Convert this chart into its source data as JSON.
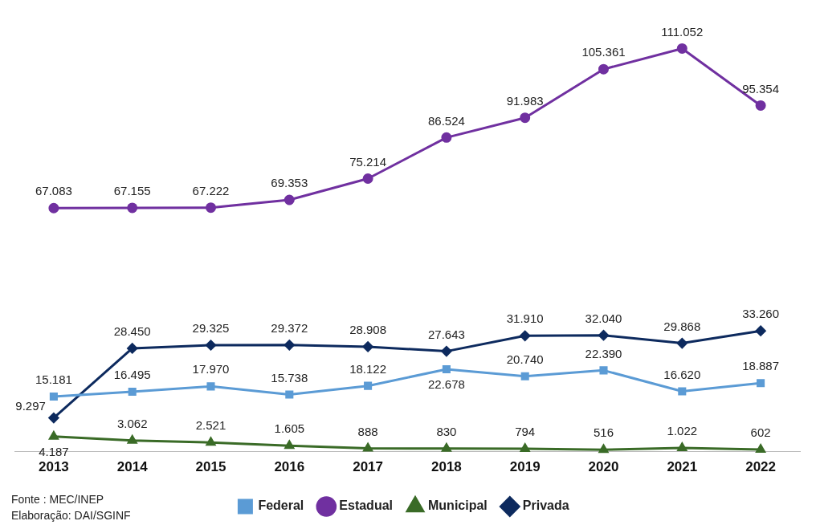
{
  "chart_data": {
    "type": "line",
    "categories": [
      "2013",
      "2014",
      "2015",
      "2016",
      "2017",
      "2018",
      "2019",
      "2020",
      "2021",
      "2022"
    ],
    "series": [
      {
        "name": "Federal",
        "color": "#5b9bd5",
        "marker": "square",
        "values": [
          15181,
          16495,
          17970,
          15738,
          18122,
          22678,
          20740,
          22390,
          16620,
          18887
        ],
        "value_labels": [
          "15.181",
          "16.495",
          "17.970",
          "15.738",
          "18.122",
          "22.678",
          "20.740",
          "22.390",
          "16.620",
          "18.887"
        ]
      },
      {
        "name": "Estadual",
        "color": "#7030a0",
        "marker": "circle",
        "values": [
          67083,
          67155,
          67222,
          69353,
          75214,
          86524,
          91983,
          105361,
          111052,
          95354
        ],
        "value_labels": [
          "67.083",
          "67.155",
          "67.222",
          "69.353",
          "75.214",
          "86.524",
          "91.983",
          "105.361",
          "111.052",
          "95.354"
        ]
      },
      {
        "name": "Municipal",
        "color": "#3a6b27",
        "marker": "triangle",
        "values": [
          4187,
          3062,
          2521,
          1605,
          888,
          830,
          794,
          516,
          1022,
          602
        ],
        "value_labels": [
          "4.187",
          "3.062",
          "2.521",
          "1.605",
          "888",
          "830",
          "794",
          "516",
          "1.022",
          "602"
        ]
      },
      {
        "name": "Privada",
        "color": "#0d2a5e",
        "marker": "diamond",
        "values": [
          9297,
          28450,
          29325,
          29372,
          28908,
          27643,
          31910,
          32040,
          29868,
          33260
        ],
        "value_labels": [
          "9.297",
          "28.450",
          "29.325",
          "29.372",
          "28.908",
          "27.643",
          "31.910",
          "32.040",
          "29.868",
          "33.260"
        ]
      }
    ],
    "legend": "bottom",
    "line_style": "solid",
    "annotations": [
      "Fonte : MEC/INEP",
      "Elaboração: DAI/SGINF"
    ]
  }
}
